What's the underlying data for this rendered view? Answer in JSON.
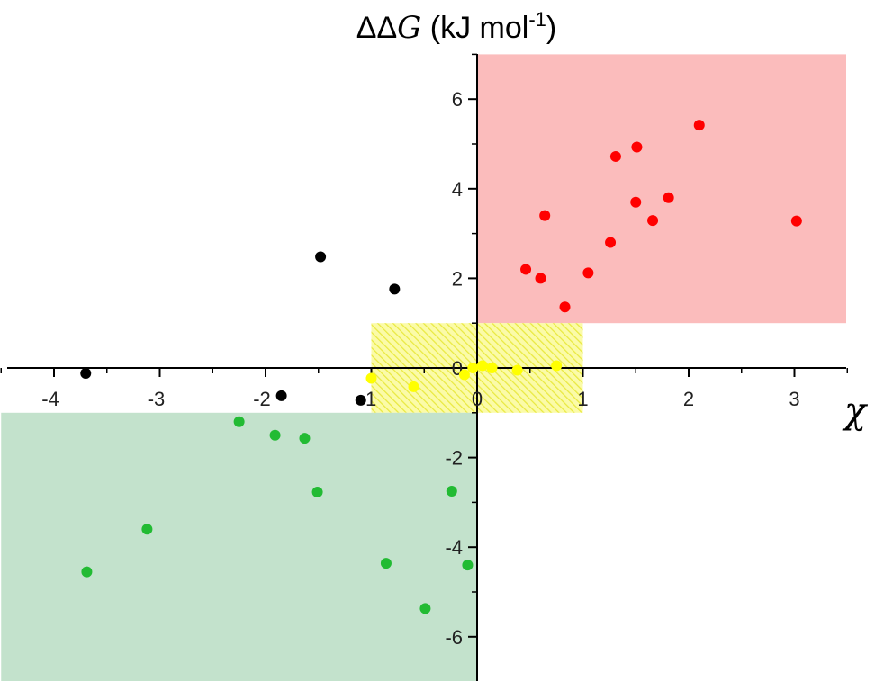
{
  "chart_data": {
    "type": "scatter",
    "title": "",
    "ylabel": {
      "delta": "ΔΔ",
      "var": "G",
      "unit": " (kJ mol",
      "exp": "-1",
      "close": ")"
    },
    "xlabel": "χ",
    "xlim": [
      -4.5,
      3.5
    ],
    "ylim": [
      -7,
      7
    ],
    "xticks": [
      -4,
      -3,
      -2,
      -1,
      0,
      1,
      2,
      3
    ],
    "yticks": [
      -6,
      -4,
      -2,
      0,
      2,
      4,
      6
    ],
    "regions": [
      {
        "color": "#fbbcbc",
        "hatch": false,
        "x": [
          0,
          3.5
        ],
        "y": [
          1,
          7
        ]
      },
      {
        "color": "#fafa60",
        "hatch": true,
        "x": [
          -1,
          1
        ],
        "y": [
          -1,
          1
        ]
      },
      {
        "color": "#c3e2cc",
        "hatch": false,
        "x": [
          -4.5,
          0
        ],
        "y": [
          -7,
          -1
        ]
      }
    ],
    "series": [
      {
        "color": "#000000",
        "points": [
          [
            -3.7,
            -0.12
          ],
          [
            -1.48,
            2.48
          ],
          [
            -0.78,
            1.76
          ],
          [
            -1.85,
            -0.62
          ],
          [
            -1.1,
            -0.72
          ]
        ]
      },
      {
        "color": "#ff0000",
        "points": [
          [
            0.46,
            2.2
          ],
          [
            0.6,
            2.0
          ],
          [
            0.64,
            3.4
          ],
          [
            0.83,
            1.36
          ],
          [
            1.05,
            2.12
          ],
          [
            1.26,
            2.8
          ],
          [
            1.31,
            4.72
          ],
          [
            1.5,
            3.7
          ],
          [
            1.51,
            4.93
          ],
          [
            1.66,
            3.29
          ],
          [
            1.81,
            3.8
          ],
          [
            2.1,
            5.42
          ],
          [
            3.02,
            3.28
          ]
        ]
      },
      {
        "color": "#ffff00",
        "points": [
          [
            -1.0,
            -0.23
          ],
          [
            -0.6,
            -0.42
          ],
          [
            -0.12,
            -0.15
          ],
          [
            -0.04,
            0.0
          ],
          [
            0.05,
            0.05
          ],
          [
            0.14,
            0.0
          ],
          [
            0.38,
            -0.05
          ],
          [
            0.75,
            0.05
          ]
        ]
      },
      {
        "color": "#22bb33",
        "points": [
          [
            -2.25,
            -1.2
          ],
          [
            -1.91,
            -1.5
          ],
          [
            -1.63,
            -1.57
          ],
          [
            -1.51,
            -2.77
          ],
          [
            -3.12,
            -3.6
          ],
          [
            -3.69,
            -4.55
          ],
          [
            -0.86,
            -4.36
          ],
          [
            -0.49,
            -5.37
          ],
          [
            -0.24,
            -2.75
          ],
          [
            -0.09,
            -4.4
          ]
        ]
      }
    ]
  }
}
